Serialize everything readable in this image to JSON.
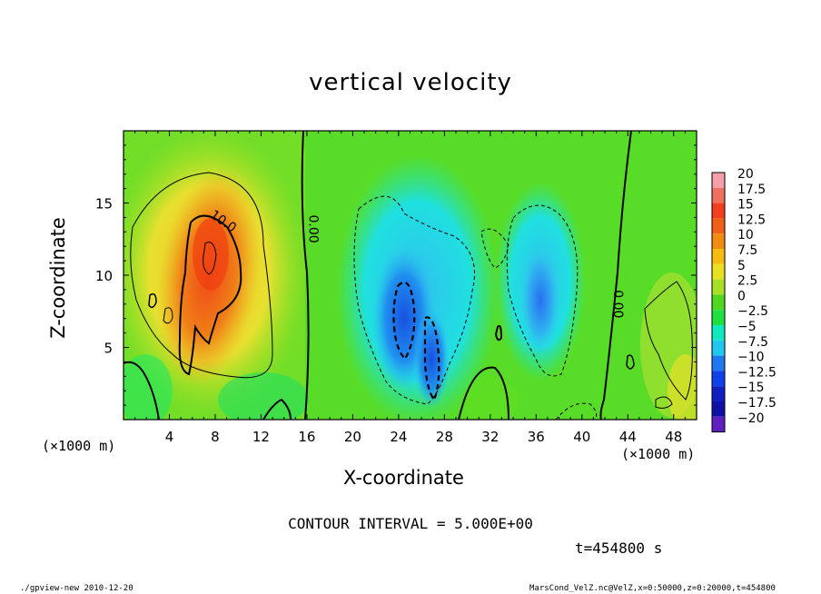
{
  "title": "vertical velocity",
  "xlabel": "X-coordinate",
  "ylabel": "Z-coordinate",
  "x_unit": "(×1000 m)",
  "contour_interval": "CONTOUR INTERVAL = 5.000E+00",
  "time_label": "t=454800 s",
  "footer_left": "./gpview-new  2010-12-20",
  "footer_right": "MarsCond_VelZ.nc@VelZ,x=0:50000,z=0:20000,t=454800",
  "chart_data": {
    "type": "heatmap",
    "title": "vertical velocity",
    "xlabel": "X-coordinate",
    "ylabel": "Z-coordinate",
    "x_unit": "(×1000 m)",
    "xlim": [
      0,
      50
    ],
    "ylim": [
      0,
      20
    ],
    "x_ticks": [
      4,
      8,
      12,
      16,
      20,
      24,
      28,
      32,
      36,
      40,
      44,
      48
    ],
    "y_ticks": [
      5,
      10,
      15
    ],
    "contour_labels": [
      {
        "text": "10.0",
        "x": 8.5,
        "y": 13.5
      },
      {
        "text": "0.00",
        "x": 16.2,
        "y": 13.2
      },
      {
        "text": "0.00",
        "x": 42.8,
        "y": 8.0
      }
    ],
    "colorbar_levels": [
      "20",
      "17.5",
      "15",
      "12.5",
      "10",
      "7.5",
      "5",
      "2.5",
      "0",
      "−2.5",
      "−5",
      "−7.5",
      "−10",
      "−12.5",
      "−15",
      "−17.5",
      "−20"
    ],
    "colorbar_colors": [
      "#f4a0a8",
      "#f07060",
      "#f04020",
      "#f06018",
      "#f08c10",
      "#f4bc10",
      "#e8e020",
      "#a8e028",
      "#50d820",
      "#20e040",
      "#10e8c0",
      "#20c8f0",
      "#2078f0",
      "#1040e8",
      "#1020c0",
      "#1010a8",
      "#6020c0"
    ],
    "features": [
      {
        "kind": "updraft",
        "center": [
          8,
          11
        ],
        "peak": 14
      },
      {
        "kind": "downdraft",
        "center": [
          24,
          6
        ],
        "peak": -12
      },
      {
        "kind": "downdraft",
        "center": [
          26.5,
          4.5
        ],
        "peak": -11
      },
      {
        "kind": "downdraft",
        "center": [
          36,
          8
        ],
        "peak": -8
      }
    ]
  }
}
